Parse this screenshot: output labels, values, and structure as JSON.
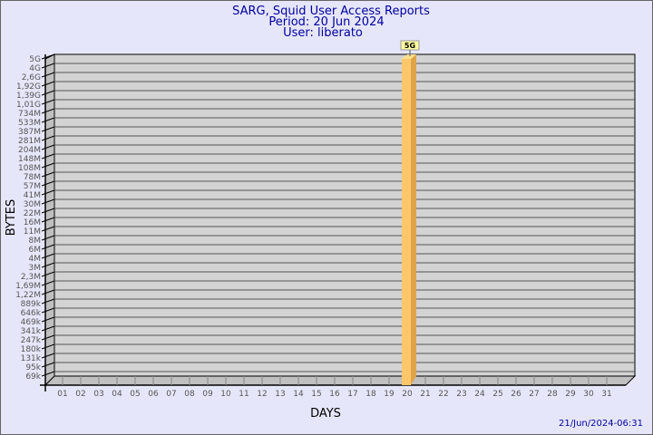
{
  "chart_data": {
    "type": "bar",
    "title": [
      "SARG, Squid User Access Reports",
      "Period: 20 Jun 2024",
      "User: liberato"
    ],
    "xlabel": "DAYS",
    "ylabel": "BYTES",
    "y_scale": "log",
    "y_tick_labels": [
      "5G",
      "4G",
      "2,6G",
      "1,92G",
      "1,39G",
      "1,01G",
      "734M",
      "533M",
      "387M",
      "281M",
      "204M",
      "148M",
      "108M",
      "78M",
      "57M",
      "41M",
      "30M",
      "22M",
      "16M",
      "11M",
      "8M",
      "6M",
      "4M",
      "3M",
      "2,3M",
      "1,69M",
      "1,22M",
      "889k",
      "646k",
      "469k",
      "341k",
      "247k",
      "180k",
      "131k",
      "95k",
      "69k"
    ],
    "categories": [
      "01",
      "02",
      "03",
      "04",
      "05",
      "06",
      "07",
      "08",
      "09",
      "10",
      "11",
      "12",
      "13",
      "14",
      "15",
      "16",
      "17",
      "18",
      "19",
      "20",
      "21",
      "22",
      "23",
      "24",
      "25",
      "26",
      "27",
      "28",
      "29",
      "30",
      "31"
    ],
    "bars": [
      {
        "day": "20",
        "value": "5G",
        "label": "5G"
      }
    ],
    "grid": true,
    "colors": {
      "background": "#e6e6fa",
      "plot": "#d3d3d3",
      "bar": "#ffc76a",
      "bar_side": "#e0a448",
      "label_box": "#ffffa0",
      "title": "#0000a0"
    },
    "footer": "21/Jun/2024-06:31"
  }
}
